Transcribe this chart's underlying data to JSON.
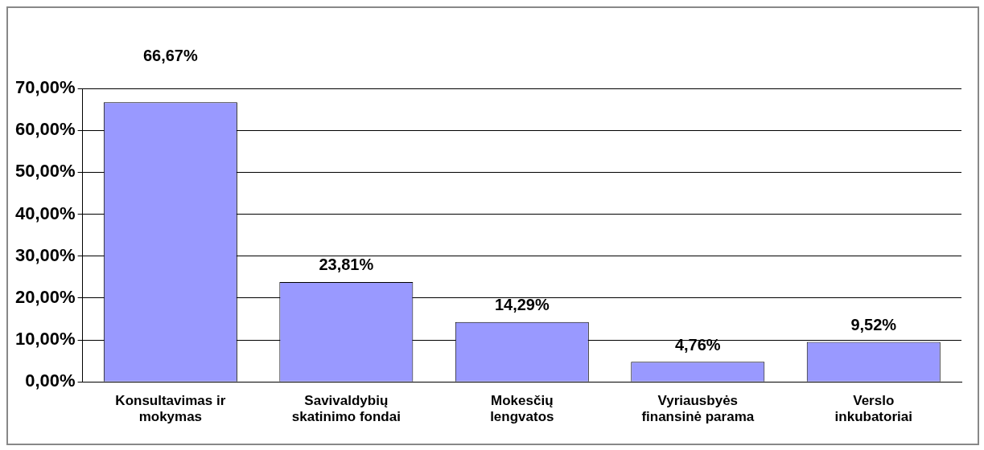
{
  "chart_data": {
    "type": "bar",
    "categories": [
      "Konsultavimas ir\nmokymas",
      "Savivaldybių\nskatinimo fondai",
      "Mokesčių\nlengvatos",
      "Vyriausbyės\nfinansinė parama",
      "Verslo\ninkubatoriai"
    ],
    "values": [
      66.67,
      23.81,
      14.29,
      4.76,
      9.52
    ],
    "value_labels": [
      "66,67%",
      "23,81%",
      "14,29%",
      "4,76%",
      "9,52%"
    ],
    "color": "#9999ff",
    "ylim": [
      0,
      70
    ],
    "yticks": [
      {
        "value": 0,
        "label": "0,00%"
      },
      {
        "value": 10,
        "label": "10,00%"
      },
      {
        "value": 20,
        "label": "20,00%"
      },
      {
        "value": 30,
        "label": "30,00%"
      },
      {
        "value": 40,
        "label": "40,00%"
      },
      {
        "value": 50,
        "label": "50,00%"
      },
      {
        "value": 60,
        "label": "60,00%"
      },
      {
        "value": 70,
        "label": "70,00%"
      }
    ],
    "grid": "y",
    "legend": false
  }
}
